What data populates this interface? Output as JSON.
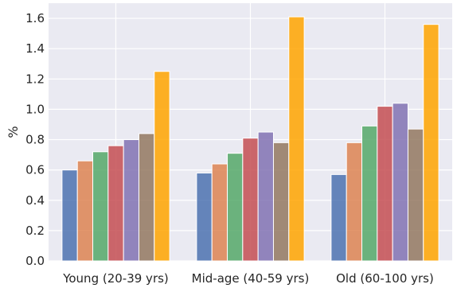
{
  "chart_data": {
    "type": "bar",
    "ylabel": "%",
    "xlabel": "",
    "title": "",
    "ylim": [
      0,
      1.7
    ],
    "yticks": [
      "0.0",
      "0.2",
      "0.4",
      "0.6",
      "0.8",
      "1.0",
      "1.2",
      "1.4",
      "1.6"
    ],
    "grid": true,
    "categories": [
      "Young (20-39 yrs)",
      "Mid-age (40-59 yrs)",
      "Old (60-100 yrs)"
    ],
    "series": [
      {
        "color": "#4c72b0",
        "values": [
          0.6,
          0.58,
          0.57
        ]
      },
      {
        "color": "#dd8452",
        "values": [
          0.66,
          0.64,
          0.78
        ]
      },
      {
        "color": "#55a868",
        "values": [
          0.72,
          0.71,
          0.89
        ]
      },
      {
        "color": "#c44e52",
        "values": [
          0.76,
          0.81,
          1.02
        ]
      },
      {
        "color": "#8172b3",
        "values": [
          0.8,
          0.85,
          1.04
        ]
      },
      {
        "color": "#937860",
        "values": [
          0.84,
          0.78,
          0.87
        ]
      },
      {
        "color": "#ffa500",
        "values": [
          1.25,
          1.61,
          1.56
        ]
      }
    ]
  }
}
